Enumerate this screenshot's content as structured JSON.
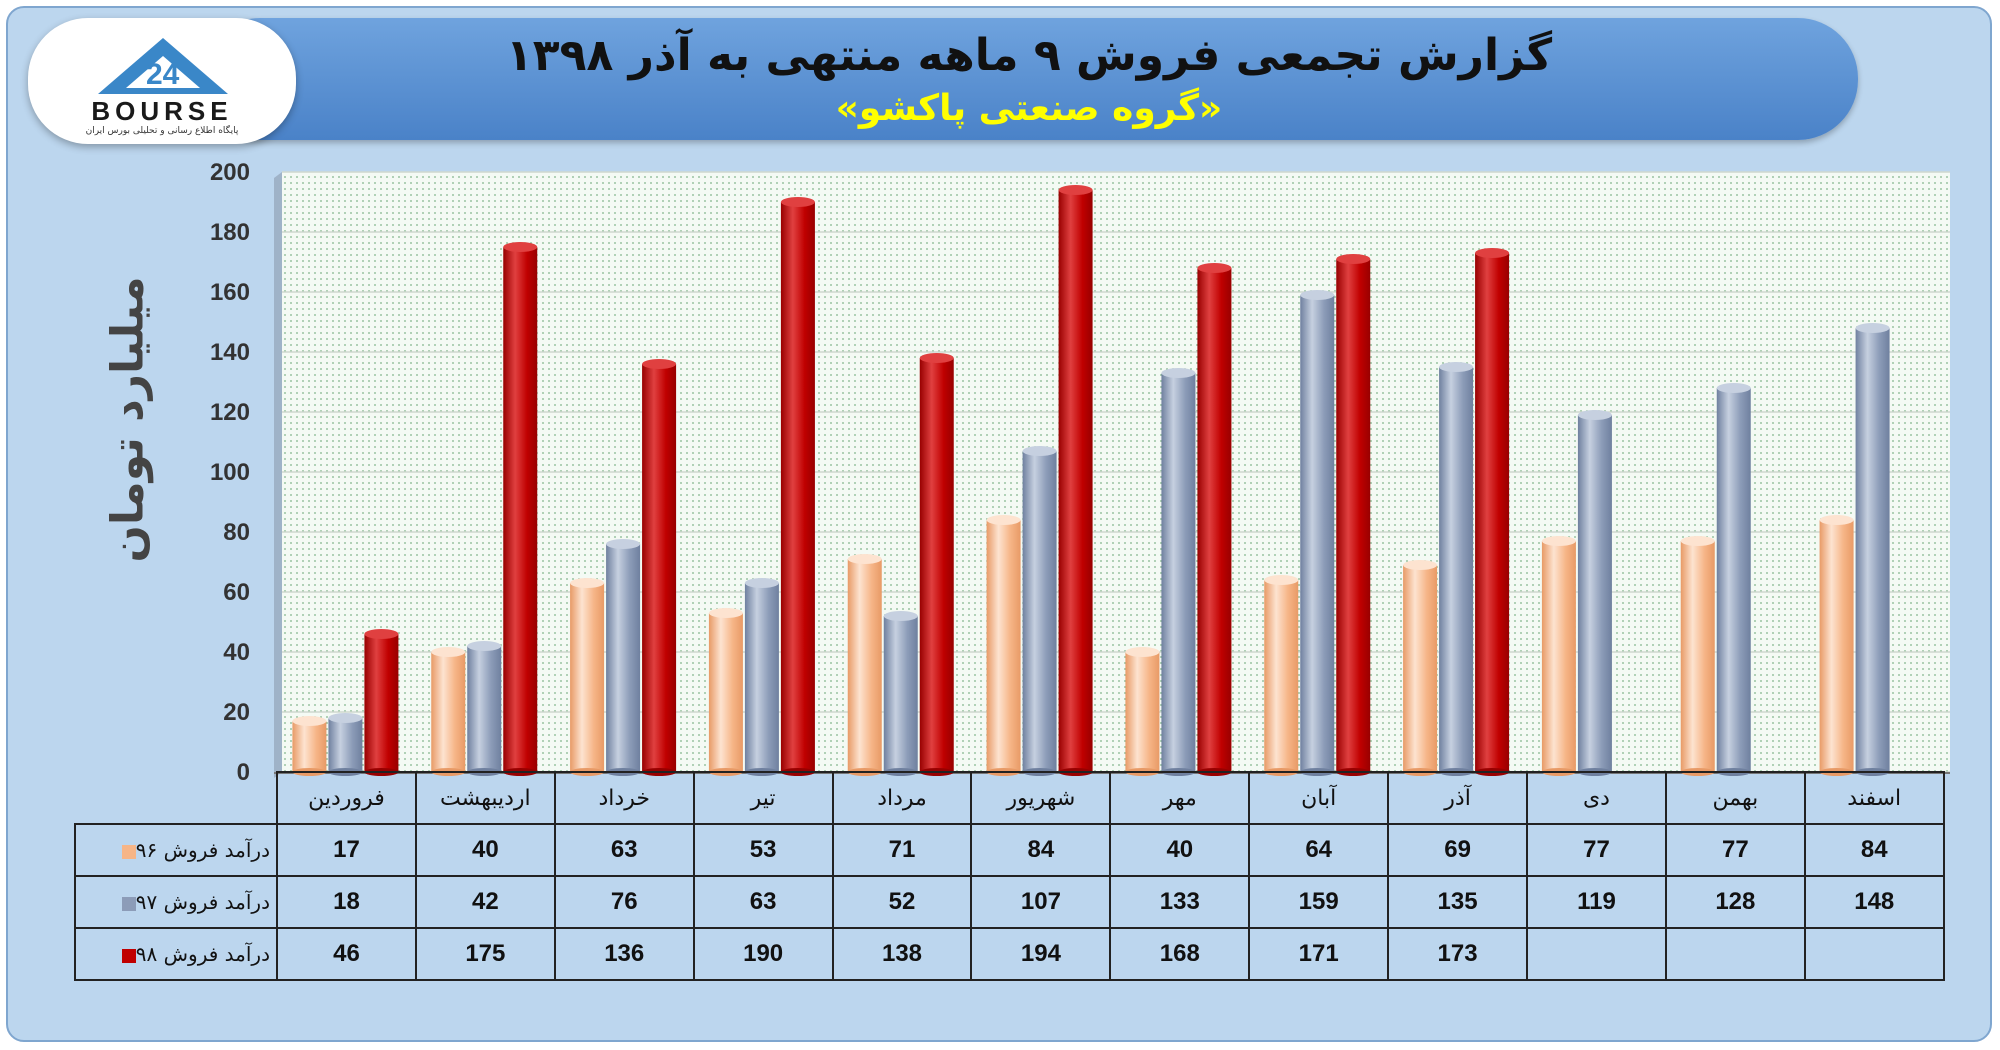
{
  "header": {
    "title": "گزارش تجمعی فروش ۹ ماهه منتهی به آذر ۱۳۹۸",
    "subtitle": "«گروه صنعتی پاکشو»"
  },
  "logo": {
    "word": "BOURSE",
    "caption": "پایگاه اطلاع رسانی و تحلیلی بورس ایران"
  },
  "chart_data": {
    "type": "bar",
    "ylabel": "میلیارد تومان",
    "ylim": [
      0,
      200
    ],
    "yticks": [
      0,
      20,
      40,
      60,
      80,
      100,
      120,
      140,
      160,
      180,
      200
    ],
    "grid": true,
    "legend": "table-left",
    "categories": [
      "فروردین",
      "اردیبهشت",
      "خرداد",
      "تیر",
      "مرداد",
      "شهریور",
      "مهر",
      "آبان",
      "آذر",
      "دی",
      "بهمن",
      "اسفند"
    ],
    "series": [
      {
        "name": "درآمد فروش ۹۶",
        "color": "#f6b587",
        "values": [
          17,
          40,
          63,
          53,
          71,
          84,
          40,
          64,
          69,
          77,
          77,
          84
        ]
      },
      {
        "name": "درآمد فروش ۹۷",
        "color": "#8c9cb8",
        "values": [
          18,
          42,
          76,
          63,
          52,
          107,
          133,
          159,
          135,
          119,
          128,
          148
        ]
      },
      {
        "name": "درآمد فروش ۹۸",
        "color": "#c00000",
        "values": [
          46,
          175,
          136,
          190,
          138,
          194,
          168,
          171,
          173,
          null,
          null,
          null
        ]
      }
    ]
  }
}
